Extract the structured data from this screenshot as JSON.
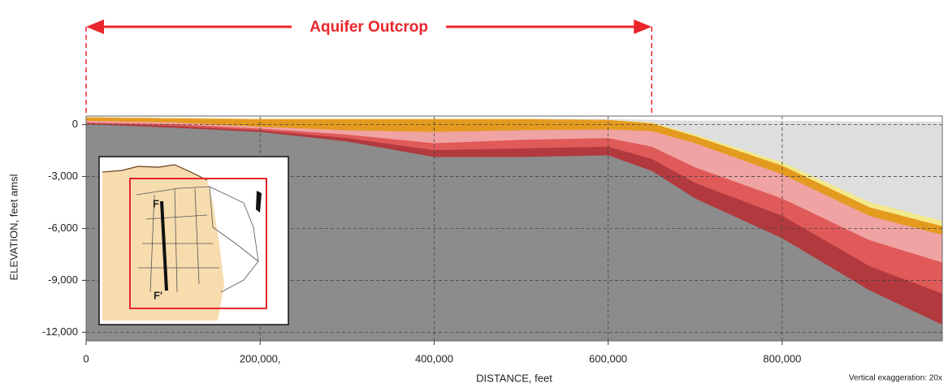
{
  "chart_data": {
    "type": "area",
    "x_label": "DISTANCE, feet",
    "y_label": "ELEVATION, feet amsl",
    "note": "Vertical exaggeration: 20x",
    "annotation": {
      "text": "Aquifer Outcrop",
      "x": [
        0,
        650000
      ],
      "color": "#e8262b"
    },
    "inset_labels": [
      "F",
      "F'"
    ],
    "x": [
      0,
      100000,
      200000,
      300000,
      400000,
      500000,
      600000,
      650000,
      700000,
      800000,
      900000,
      984000
    ],
    "series": [
      {
        "color": "#dedede",
        "values": [
          400,
          350,
          300,
          300,
          300,
          300,
          300,
          250,
          200,
          200,
          150,
          150
        ]
      },
      {
        "color": "#f3e98a",
        "values": [
          400,
          350,
          300,
          300,
          300,
          300,
          250,
          100,
          -600,
          -2200,
          -4500,
          -5600
        ]
      },
      {
        "color": "#e49a1e",
        "values": [
          400,
          350,
          300,
          300,
          300,
          300,
          250,
          50,
          -700,
          -2400,
          -4800,
          -5900
        ]
      },
      {
        "color": "#f0a3a3",
        "values": [
          200,
          100,
          -150,
          -350,
          -450,
          -350,
          -300,
          -400,
          -1100,
          -2900,
          -5300,
          -6400
        ]
      },
      {
        "color": "#e05a5a",
        "values": [
          100,
          0,
          -250,
          -600,
          -1100,
          -900,
          -800,
          -1300,
          -2500,
          -4300,
          -6700,
          -8000
        ]
      },
      {
        "color": "#b23a3e",
        "values": [
          50,
          -100,
          -350,
          -800,
          -1500,
          -1400,
          -1300,
          -2000,
          -3400,
          -5300,
          -8200,
          -9800
        ]
      },
      {
        "color": "#8c8c8c",
        "values": [
          0,
          -200,
          -450,
          -1000,
          -1900,
          -1900,
          -1800,
          -2700,
          -4300,
          -6600,
          -9600,
          -11600
        ]
      }
    ],
    "xlim": [
      0,
      984000
    ],
    "ylim": [
      -12500,
      500
    ],
    "xticks": [
      0,
      {
        "value": 200000,
        "label": "200,000,"
      },
      {
        "value": 400000,
        "label": "400,000"
      },
      {
        "value": 600000,
        "label": "600,000"
      },
      {
        "value": 800000,
        "label": "800,000"
      }
    ],
    "yticks": [
      0,
      {
        "value": -3000,
        "label": "-3,000"
      },
      {
        "value": -6000,
        "label": "-6,000"
      },
      {
        "value": -9000,
        "label": "-9,000"
      },
      {
        "value": -12000,
        "label": "-12,000"
      }
    ],
    "grid": true
  }
}
